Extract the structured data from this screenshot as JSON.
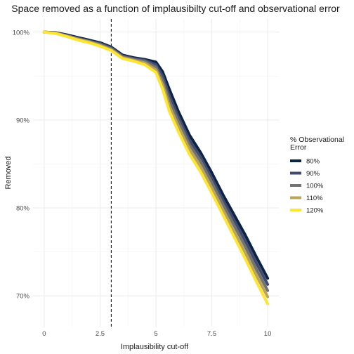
{
  "chart_data": {
    "type": "line",
    "title": "Space removed as a function of implausibilty cut-off and observational error",
    "xlabel": "Implausibility cut-off",
    "ylabel": "Removed",
    "xlim": [
      -0.5,
      10.5
    ],
    "ylim": [
      66.5,
      101.5
    ],
    "x_ticks": [
      0,
      2.5,
      5,
      7.5,
      10
    ],
    "x_tick_labels": [
      "0",
      "2.5",
      "5",
      "7.5",
      "10"
    ],
    "y_ticks": [
      70,
      80,
      90,
      100
    ],
    "y_tick_labels": [
      "70%",
      "80%",
      "90%",
      "100%"
    ],
    "grid": true,
    "vline": {
      "x": 3,
      "style": "dashed"
    },
    "legend": {
      "title_lines": [
        "% Observational",
        "Error"
      ],
      "placement": "right"
    },
    "series": [
      {
        "name": "80%",
        "color": "#0d2345",
        "x": [
          0,
          0.5,
          1.0,
          1.5,
          2.0,
          2.5,
          3.0,
          3.5,
          4.0,
          4.5,
          5.0,
          5.3,
          5.6,
          6.0,
          6.5,
          7.0,
          7.5,
          8.0,
          8.5,
          9.0,
          9.5,
          10.0
        ],
        "y": [
          100,
          99.95,
          99.7,
          99.4,
          99.1,
          98.8,
          98.3,
          97.4,
          97.1,
          96.9,
          96.6,
          95.5,
          93.5,
          91.0,
          88.3,
          86.3,
          84.0,
          81.5,
          79.2,
          76.9,
          74.4,
          72.0
        ]
      },
      {
        "name": "90%",
        "color": "#404b6f",
        "x": [
          0,
          0.5,
          1.0,
          1.5,
          2.0,
          2.5,
          3.0,
          3.5,
          4.0,
          4.5,
          5.0,
          5.3,
          5.6,
          6.0,
          6.5,
          7.0,
          7.5,
          8.0,
          8.5,
          9.0,
          9.5,
          10.0
        ],
        "y": [
          100,
          99.95,
          99.65,
          99.3,
          99.0,
          98.7,
          98.2,
          97.3,
          97.0,
          96.8,
          96.3,
          95.0,
          92.8,
          90.4,
          87.7,
          85.8,
          83.4,
          80.9,
          78.6,
          76.2,
          73.7,
          71.3
        ]
      },
      {
        "name": "100%",
        "color": "#737373",
        "x": [
          0,
          0.5,
          1.0,
          1.5,
          2.0,
          2.5,
          3.0,
          3.5,
          4.0,
          4.5,
          5.0,
          5.3,
          5.6,
          6.0,
          6.5,
          7.0,
          7.5,
          8.0,
          8.5,
          9.0,
          9.5,
          10.0
        ],
        "y": [
          100,
          99.9,
          99.6,
          99.25,
          98.95,
          98.6,
          98.1,
          97.2,
          96.9,
          96.7,
          96.0,
          94.5,
          92.2,
          89.9,
          87.2,
          85.3,
          82.9,
          80.4,
          78.0,
          75.6,
          73.0,
          70.6
        ]
      },
      {
        "name": "110%",
        "color": "#b8a758",
        "x": [
          0,
          0.5,
          1.0,
          1.5,
          2.0,
          2.5,
          3.0,
          3.5,
          4.0,
          4.5,
          5.0,
          5.3,
          5.6,
          6.0,
          6.5,
          7.0,
          7.5,
          8.0,
          8.5,
          9.0,
          9.5,
          10.0
        ],
        "y": [
          100,
          99.9,
          99.55,
          99.2,
          98.9,
          98.5,
          98.0,
          97.1,
          96.8,
          96.5,
          95.7,
          94.0,
          91.6,
          89.3,
          86.7,
          84.7,
          82.3,
          79.8,
          77.3,
          74.9,
          72.3,
          69.9
        ]
      },
      {
        "name": "120%",
        "color": "#ffe431",
        "x": [
          0,
          0.5,
          1.0,
          1.5,
          2.0,
          2.5,
          3.0,
          3.5,
          4.0,
          4.5,
          5.0,
          5.3,
          5.6,
          6.0,
          6.5,
          7.0,
          7.5,
          8.0,
          8.5,
          9.0,
          9.5,
          10.0
        ],
        "y": [
          100,
          99.85,
          99.5,
          99.1,
          98.8,
          98.4,
          97.9,
          97.0,
          96.7,
          96.3,
          95.4,
          93.5,
          91.0,
          88.7,
          86.1,
          84.1,
          81.7,
          79.2,
          76.7,
          74.2,
          71.6,
          69.1
        ]
      }
    ]
  }
}
